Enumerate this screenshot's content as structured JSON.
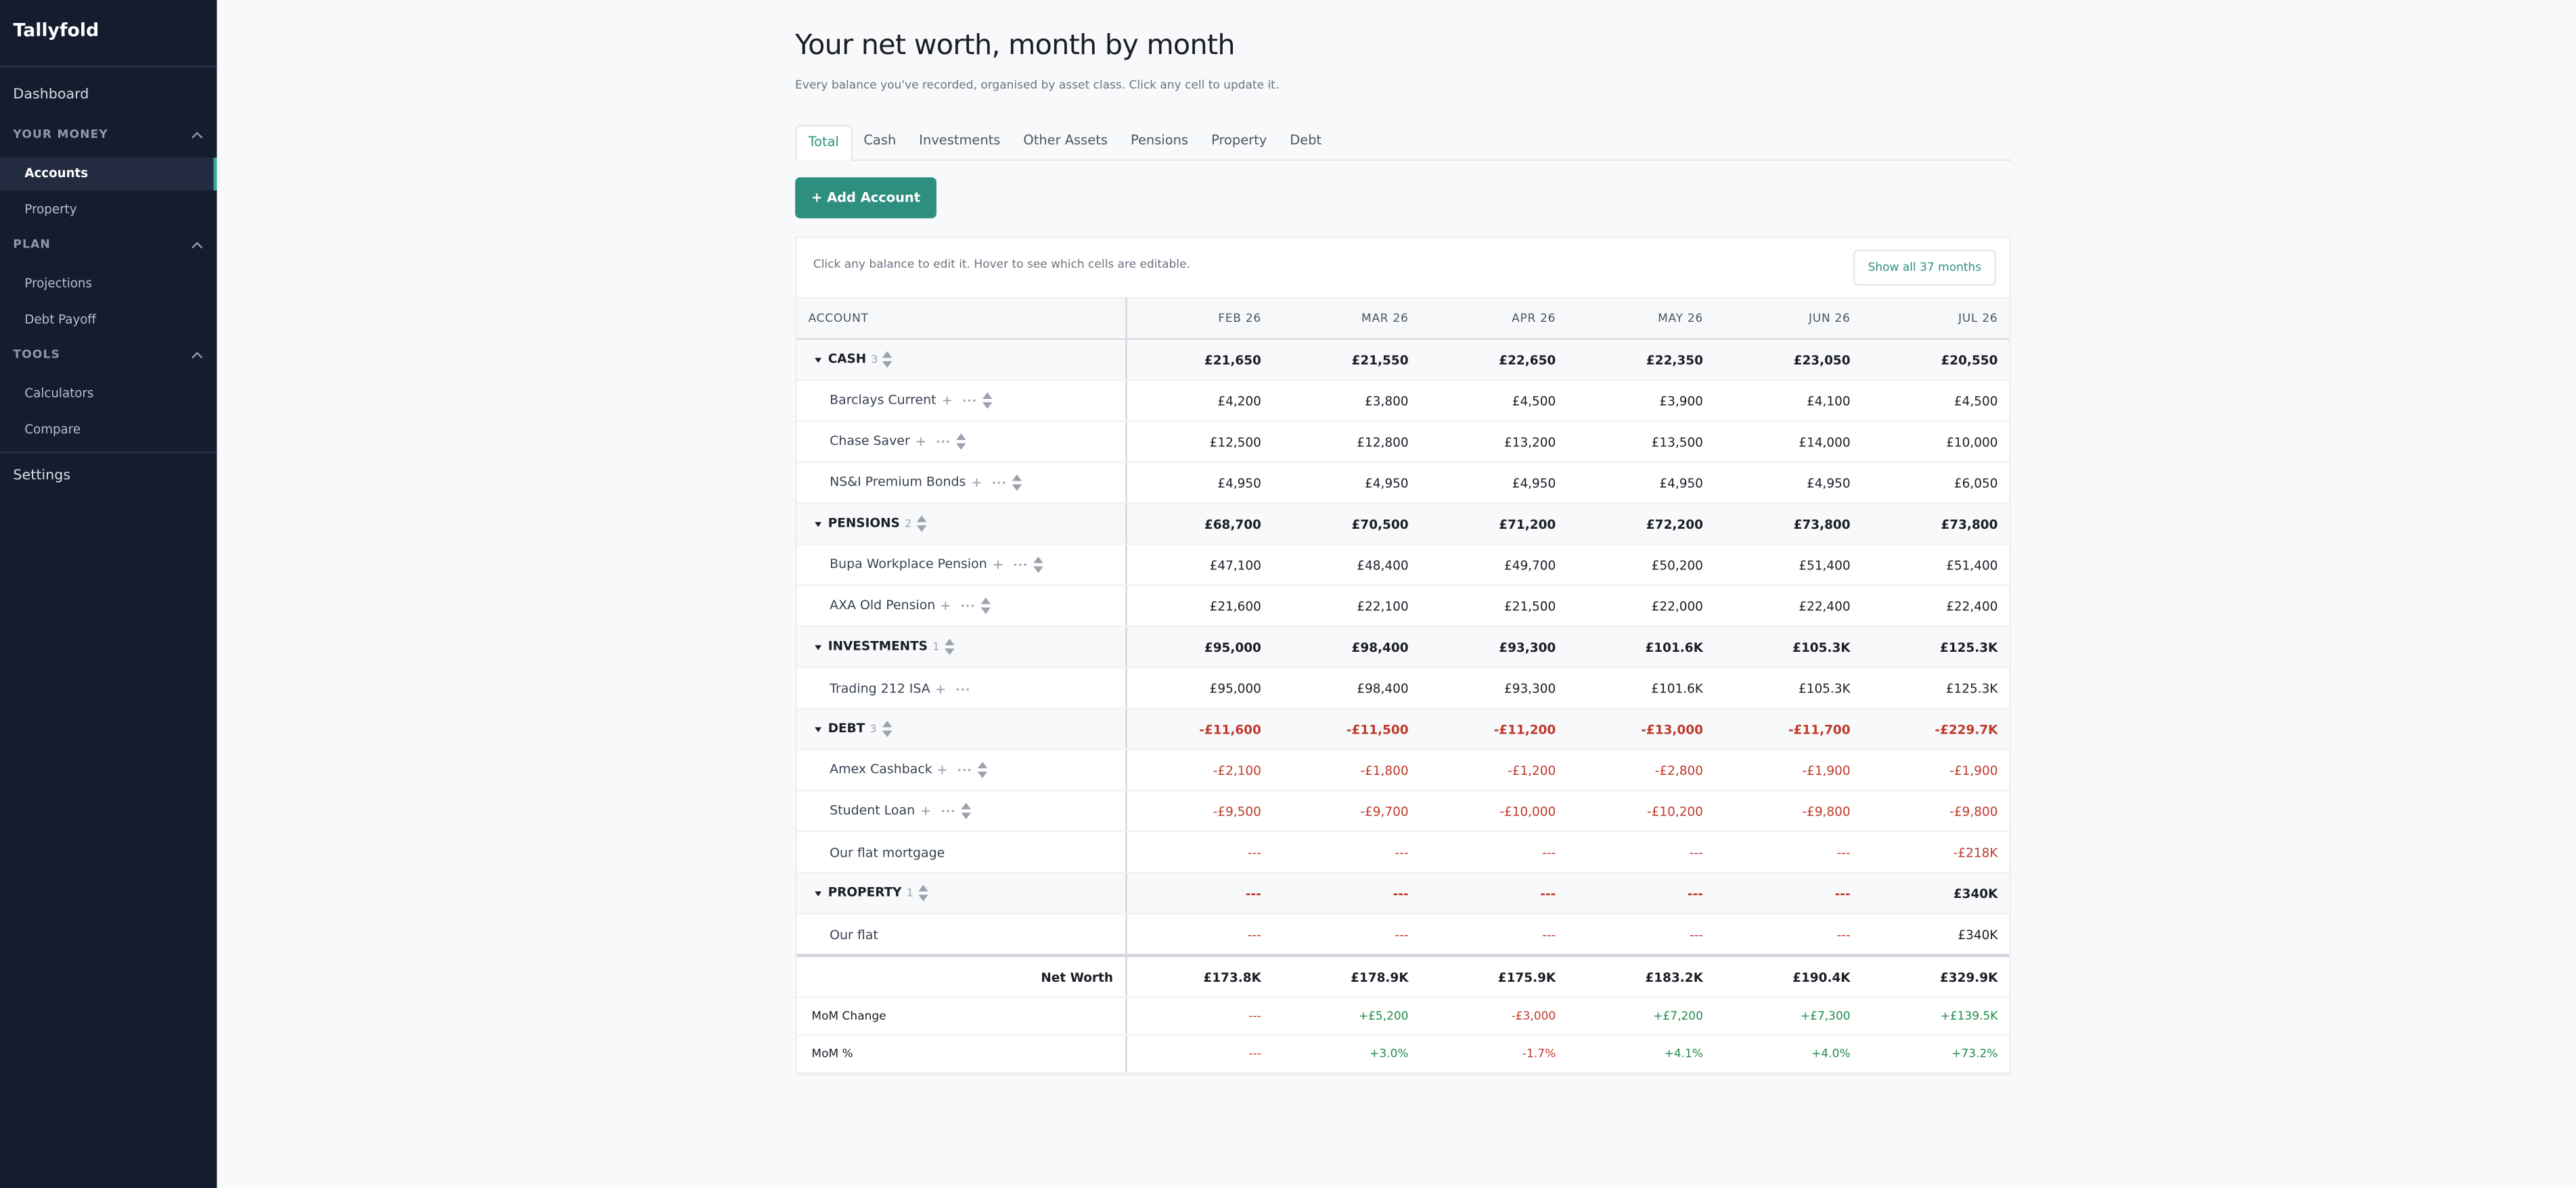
{
  "sidebar": {
    "brand": "Tallyfold",
    "top": "Dashboard",
    "sections": [
      {
        "title": "YOUR MONEY",
        "items": [
          "Accounts",
          "Property"
        ]
      },
      {
        "title": "PLAN",
        "items": [
          "Projections",
          "Debt Payoff"
        ]
      },
      {
        "title": "TOOLS",
        "items": [
          "Calculators",
          "Compare"
        ]
      }
    ],
    "bottom": "Settings"
  },
  "header": {
    "title": "Your net worth, month by month",
    "subtitle": "Every balance you've recorded, organised by asset class. Click any cell to update it."
  },
  "tabs": [
    "Total",
    "Cash",
    "Investments",
    "Other Assets",
    "Pensions",
    "Property",
    "Debt"
  ],
  "add_button": "+ Add Account",
  "table": {
    "note": "Click any balance to edit it. Hover to see which cells are editable.",
    "show_all": "Show all 37 months",
    "columns": [
      "ACCOUNT",
      "FEB 26",
      "MAR 26",
      "APR 26",
      "MAY 26",
      "JUN 26",
      "JUL 26"
    ],
    "groups": [
      {
        "name": "CASH",
        "count": "3",
        "values": [
          "£21,650",
          "£21,550",
          "£22,650",
          "£22,350",
          "£23,050",
          "£20,550"
        ],
        "accounts": [
          {
            "name": "Barclays Current",
            "values": [
              "£4,200",
              "£3,800",
              "£4,500",
              "£3,900",
              "£4,100",
              "£4,500"
            ]
          },
          {
            "name": "Chase Saver",
            "values": [
              "£12,500",
              "£12,800",
              "£13,200",
              "£13,500",
              "£14,000",
              "£10,000"
            ]
          },
          {
            "name": "NS&I Premium Bonds",
            "values": [
              "£4,950",
              "£4,950",
              "£4,950",
              "£4,950",
              "£4,950",
              "£6,050"
            ]
          }
        ]
      },
      {
        "name": "PENSIONS",
        "count": "2",
        "values": [
          "£68,700",
          "£70,500",
          "£71,200",
          "£72,200",
          "£73,800",
          "£73,800"
        ],
        "accounts": [
          {
            "name": "Bupa Workplace Pension",
            "values": [
              "£47,100",
              "£48,400",
              "£49,700",
              "£50,200",
              "£51,400",
              "£51,400"
            ]
          },
          {
            "name": "AXA Old Pension",
            "values": [
              "£21,600",
              "£22,100",
              "£21,500",
              "£22,000",
              "£22,400",
              "£22,400"
            ]
          }
        ]
      },
      {
        "name": "INVESTMENTS",
        "count": "1",
        "values": [
          "£95,000",
          "£98,400",
          "£93,300",
          "£101.6K",
          "£105.3K",
          "£125.3K"
        ],
        "accounts": [
          {
            "name": "Trading 212 ISA",
            "values": [
              "£95,000",
              "£98,400",
              "£93,300",
              "£101.6K",
              "£105.3K",
              "£125.3K"
            ]
          }
        ]
      },
      {
        "name": "DEBT",
        "count": "3",
        "values": [
          "-£11,600",
          "-£11,500",
          "-£11,200",
          "-£13,000",
          "-£11,700",
          "-£229.7K"
        ],
        "accounts": [
          {
            "name": "Amex Cashback",
            "values": [
              "-£2,100",
              "-£1,800",
              "-£1,200",
              "-£2,800",
              "-£1,900",
              "-£1,900"
            ]
          },
          {
            "name": "Student Loan",
            "values": [
              "-£9,500",
              "-£9,700",
              "-£10,000",
              "-£10,200",
              "-£9,800",
              "-£9,800"
            ]
          },
          {
            "name": "Our flat mortgage",
            "values": [
              "---",
              "---",
              "---",
              "---",
              "---",
              "-£218K"
            ]
          }
        ]
      },
      {
        "name": "PROPERTY",
        "count": "1",
        "values": [
          "---",
          "---",
          "---",
          "---",
          "---",
          "£340K"
        ],
        "accounts": [
          {
            "name": "Our flat",
            "values": [
              "---",
              "---",
              "---",
              "---",
              "---",
              "£340K"
            ]
          }
        ]
      }
    ],
    "footer": [
      {
        "label": "Net Worth",
        "values": [
          "£173.8K",
          "£178.9K",
          "£175.9K",
          "£183.2K",
          "£190.4K",
          "£329.9K"
        ]
      },
      {
        "label": "MoM Change",
        "values": [
          "---",
          "+£5,200",
          "-£3,000",
          "+£7,200",
          "+£7,300",
          "+£139.5K"
        ]
      },
      {
        "label": "MoM %",
        "values": [
          "---",
          "+3.0%",
          "-1.7%",
          "+4.1%",
          "+4.0%",
          "+73.2%"
        ]
      }
    ]
  }
}
